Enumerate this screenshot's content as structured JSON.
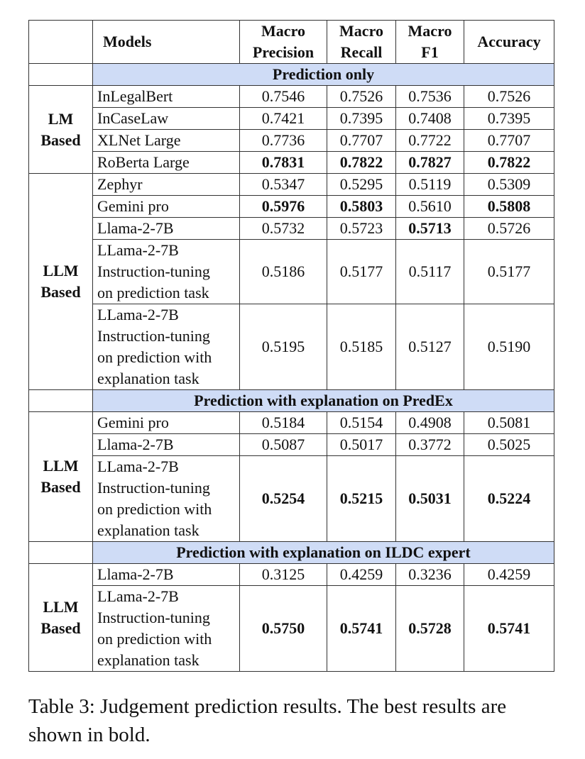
{
  "table": {
    "headers": {
      "models": "Models",
      "macro_precision_1": "Macro",
      "macro_precision_2": "Precision",
      "macro_recall_1": "Macro",
      "macro_recall_2": "Recall",
      "macro_f1_1": "Macro",
      "macro_f1_2": "F1",
      "accuracy": "Accuracy"
    },
    "sections": [
      {
        "title": "Prediction only",
        "groups": [
          {
            "label_1": "LM",
            "label_2": "Based",
            "rows": [
              {
                "model": [
                  "InLegalBert"
                ],
                "precision": "0.7546",
                "recall": "0.7526",
                "f1": "0.7536",
                "accuracy": "0.7526",
                "bold": [
                  false,
                  false,
                  false,
                  false
                ]
              },
              {
                "model": [
                  "InCaseLaw"
                ],
                "precision": "0.7421",
                "recall": "0.7395",
                "f1": "0.7408",
                "accuracy": "0.7395",
                "bold": [
                  false,
                  false,
                  false,
                  false
                ]
              },
              {
                "model": [
                  "XLNet Large"
                ],
                "precision": "0.7736",
                "recall": "0.7707",
                "f1": "0.7722",
                "accuracy": "0.7707",
                "bold": [
                  false,
                  false,
                  false,
                  false
                ]
              },
              {
                "model": [
                  "RoBerta Large"
                ],
                "precision": "0.7831",
                "recall": "0.7822",
                "f1": "0.7827",
                "accuracy": "0.7822",
                "bold": [
                  true,
                  true,
                  true,
                  true
                ]
              }
            ]
          },
          {
            "label_1": "LLM",
            "label_2": "Based",
            "rows": [
              {
                "model": [
                  "Zephyr"
                ],
                "precision": "0.5347",
                "recall": "0.5295",
                "f1": "0.5119",
                "accuracy": "0.5309",
                "bold": [
                  false,
                  false,
                  false,
                  false
                ]
              },
              {
                "model": [
                  "Gemini pro"
                ],
                "precision": "0.5976",
                "recall": "0.5803",
                "f1": "0.5610",
                "accuracy": "0.5808",
                "bold": [
                  true,
                  true,
                  false,
                  true
                ]
              },
              {
                "model": [
                  "Llama-2-7B"
                ],
                "precision": "0.5732",
                "recall": "0.5723",
                "f1": "0.5713",
                "accuracy": "0.5726",
                "bold": [
                  false,
                  false,
                  true,
                  false
                ]
              },
              {
                "model": [
                  "LLama-2-7B",
                  "Instruction-tuning",
                  "on prediction task"
                ],
                "precision": "0.5186",
                "recall": "0.5177",
                "f1": "0.5117",
                "accuracy": "0.5177",
                "bold": [
                  false,
                  false,
                  false,
                  false
                ]
              },
              {
                "model": [
                  "LLama-2-7B",
                  "Instruction-tuning",
                  "on prediction with",
                  "explanation task"
                ],
                "precision": "0.5195",
                "recall": "0.5185",
                "f1": "0.5127",
                "accuracy": "0.5190",
                "bold": [
                  false,
                  false,
                  false,
                  false
                ]
              }
            ]
          }
        ]
      },
      {
        "title": "Prediction with explanation on PredEx",
        "groups": [
          {
            "label_1": "LLM",
            "label_2": "Based",
            "rows": [
              {
                "model": [
                  "Gemini pro"
                ],
                "precision": "0.5184",
                "recall": "0.5154",
                "f1": "0.4908",
                "accuracy": "0.5081",
                "bold": [
                  false,
                  false,
                  false,
                  false
                ]
              },
              {
                "model": [
                  "Llama-2-7B"
                ],
                "precision": "0.5087",
                "recall": "0.5017",
                "f1": "0.3772",
                "accuracy": "0.5025",
                "bold": [
                  false,
                  false,
                  false,
                  false
                ]
              },
              {
                "model": [
                  "LLama-2-7B",
                  "Instruction-tuning",
                  "on prediction with",
                  "explanation task"
                ],
                "precision": "0.5254",
                "recall": "0.5215",
                "f1": "0.5031",
                "accuracy": "0.5224",
                "bold": [
                  true,
                  true,
                  true,
                  true
                ]
              }
            ]
          }
        ]
      },
      {
        "title": "Prediction with explanation on ILDC expert",
        "groups": [
          {
            "label_1": "LLM",
            "label_2": "Based",
            "rows": [
              {
                "model": [
                  "Llama-2-7B"
                ],
                "precision": "0.3125",
                "recall": "0.4259",
                "f1": "0.3236",
                "accuracy": "0.4259",
                "bold": [
                  false,
                  false,
                  false,
                  false
                ]
              },
              {
                "model": [
                  "LLama-2-7B",
                  "Instruction-tuning",
                  "on prediction with",
                  "explanation task"
                ],
                "precision": "0.5750",
                "recall": "0.5741",
                "f1": "0.5728",
                "accuracy": "0.5741",
                "bold": [
                  true,
                  true,
                  true,
                  true
                ]
              }
            ]
          }
        ]
      }
    ]
  },
  "caption": {
    "text": "Table 3: Judgement prediction results. The best results are shown in bold."
  }
}
